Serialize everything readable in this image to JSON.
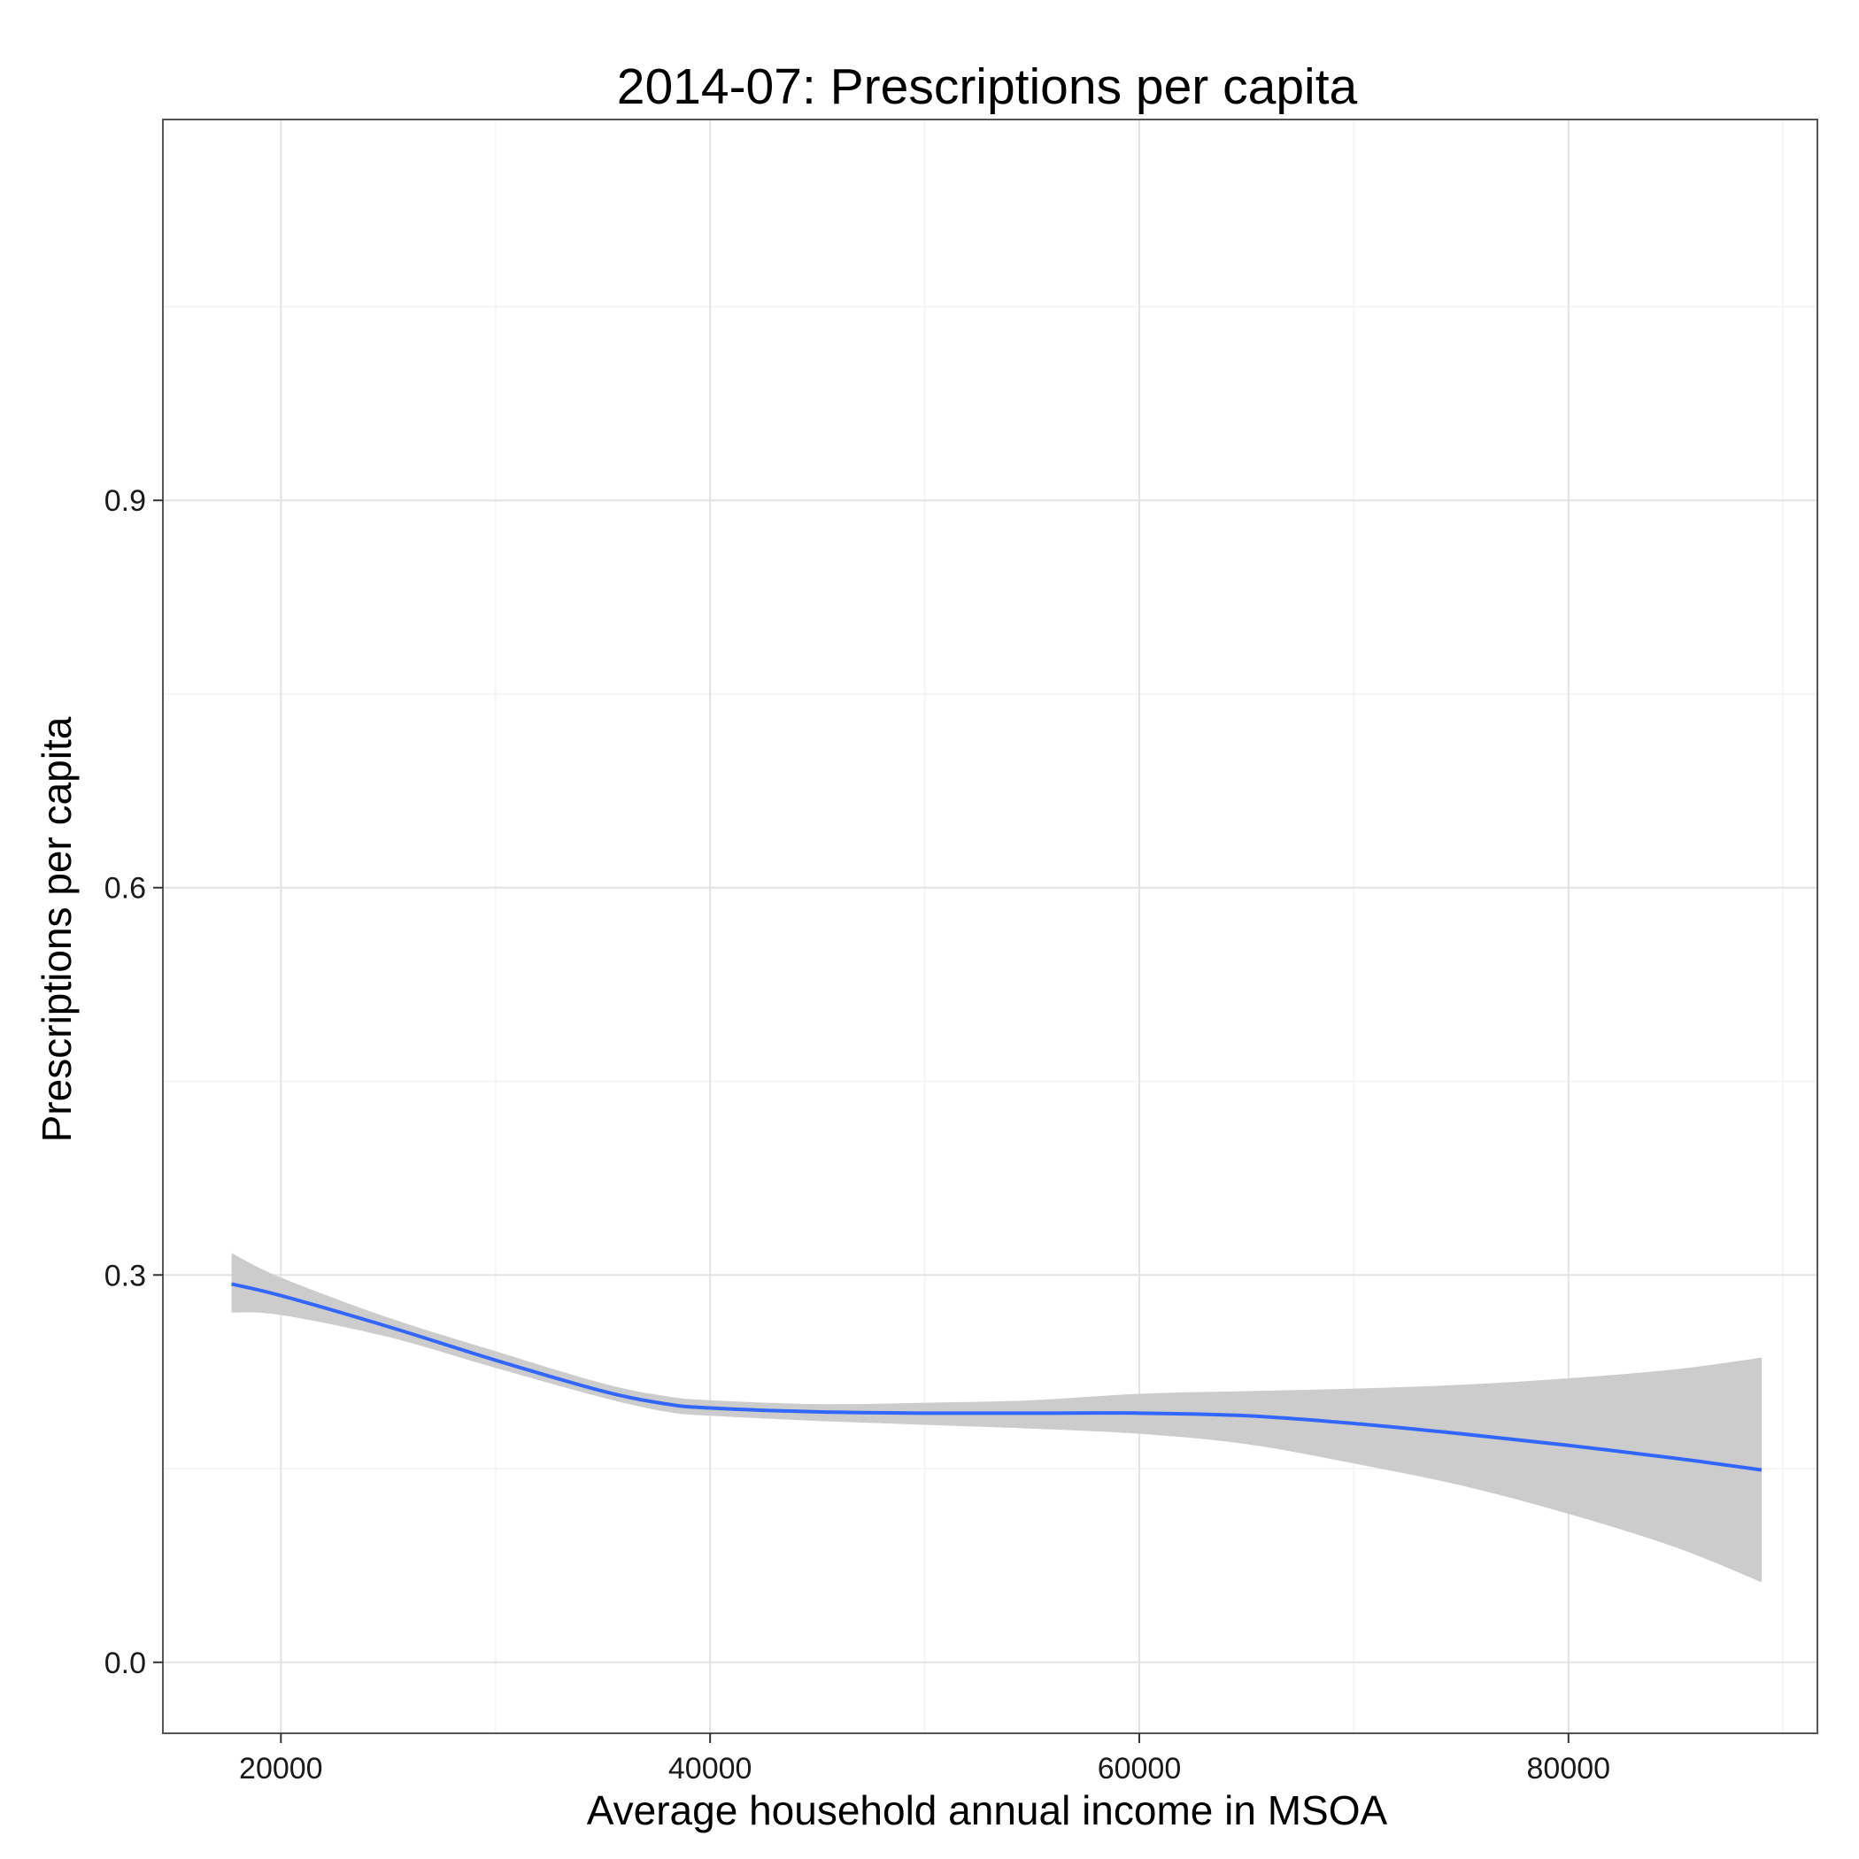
{
  "chart_data": {
    "type": "line",
    "title": "2014-07: Prescriptions per capita",
    "xlabel": "Average household annual income in MSOA",
    "ylabel": "Prescriptions per capita",
    "xlim": [
      14500,
      91600
    ],
    "ylim": [
      -0.055,
      1.195
    ],
    "x_ticks": [
      20000,
      40000,
      60000,
      80000
    ],
    "x_tick_labels": [
      "20000",
      "40000",
      "60000",
      "80000"
    ],
    "x_minor_ticks": [
      30000,
      50000,
      70000,
      90000
    ],
    "y_ticks": [
      0.0,
      0.3,
      0.6,
      0.9
    ],
    "y_tick_labels": [
      "0.0",
      "0.3",
      "0.6",
      "0.9"
    ],
    "y_minor_ticks": [
      0.15,
      0.45,
      0.75,
      1.05
    ],
    "grid": true,
    "legend": "none",
    "colors": {
      "line": "#3366FF",
      "ribbon": "#CCCCCC",
      "grid_major": "#E3E3E3",
      "grid_minor": "#F5F5F5",
      "panel_border": "#555555"
    },
    "series": [
      {
        "x": [
          17700,
          20000,
          25000,
          30000,
          35000,
          38000,
          40000,
          45000,
          50000,
          55000,
          60000,
          65000,
          70000,
          75000,
          80000,
          85000,
          89000
        ],
        "y": [
          0.293,
          0.284,
          0.26,
          0.234,
          0.21,
          0.2,
          0.197,
          0.194,
          0.193,
          0.193,
          0.193,
          0.191,
          0.185,
          0.177,
          0.168,
          0.158,
          0.149
        ],
        "lower": [
          0.271,
          0.269,
          0.252,
          0.228,
          0.205,
          0.194,
          0.191,
          0.187,
          0.184,
          0.181,
          0.177,
          0.169,
          0.154,
          0.137,
          0.115,
          0.089,
          0.062
        ],
        "upper": [
          0.317,
          0.298,
          0.267,
          0.241,
          0.216,
          0.206,
          0.203,
          0.2,
          0.201,
          0.203,
          0.208,
          0.21,
          0.212,
          0.215,
          0.22,
          0.227,
          0.236
        ]
      }
    ]
  }
}
